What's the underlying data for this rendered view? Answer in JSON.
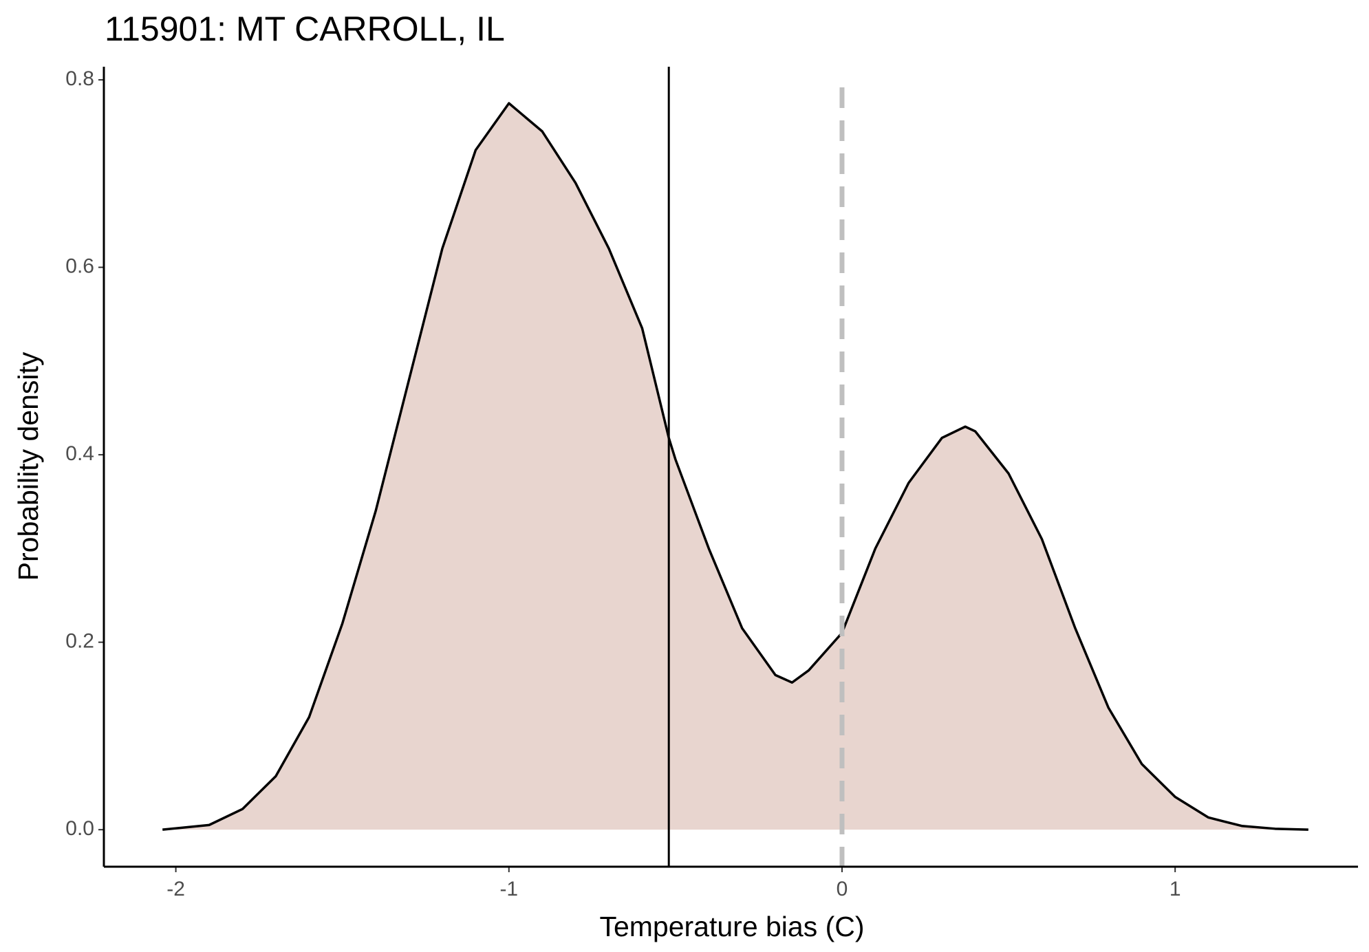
{
  "chart_data": {
    "type": "area",
    "title": "115901: MT CARROLL, IL",
    "x_label": "Temperature bias (C)",
    "y_label": "Probability density",
    "x": [
      -2.04,
      -1.9,
      -1.8,
      -1.7,
      -1.6,
      -1.5,
      -1.4,
      -1.3,
      -1.2,
      -1.1,
      -1.0,
      -0.9,
      -0.8,
      -0.7,
      -0.6,
      -0.52,
      -0.5,
      -0.4,
      -0.3,
      -0.2,
      -0.15,
      -0.1,
      0,
      0.1,
      0.2,
      0.3,
      0.37,
      0.4,
      0.5,
      0.6,
      0.7,
      0.8,
      0.9,
      1.0,
      1.1,
      1.2,
      1.3,
      1.4
    ],
    "values": [
      0.0,
      0.005,
      0.022,
      0.057,
      0.12,
      0.22,
      0.34,
      0.48,
      0.62,
      0.725,
      0.775,
      0.745,
      0.69,
      0.62,
      0.535,
      0.418,
      0.395,
      0.3,
      0.215,
      0.165,
      0.157,
      0.17,
      0.21,
      0.3,
      0.37,
      0.418,
      0.43,
      0.425,
      0.38,
      0.31,
      0.215,
      0.13,
      0.07,
      0.035,
      0.013,
      0.004,
      0.001,
      0.0
    ],
    "color": "#e8d5cf",
    "line_color": "#000000",
    "vlines": [
      {
        "x": -0.52,
        "style": "solid",
        "color": "#000000"
      },
      {
        "x": 0,
        "style": "dashed",
        "color": "#bfbfbf"
      }
    ],
    "xlim": [
      -2.216,
      1.549
    ],
    "ylim": [
      -0.0395,
      0.814
    ],
    "xticks": [
      -2,
      -1,
      0,
      1
    ],
    "yticks": [
      {
        "value": 0,
        "label": "0.0"
      },
      0.2,
      0.4,
      0.6,
      0.8
    ],
    "grid": false
  }
}
